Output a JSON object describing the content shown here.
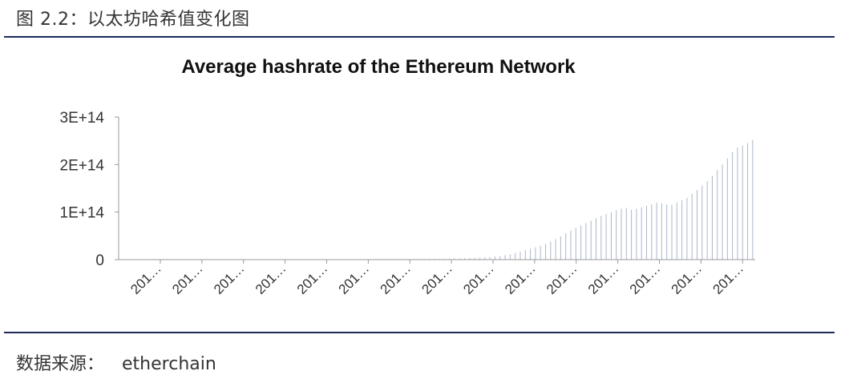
{
  "figure": {
    "caption": "图 2.2：以太坊哈希值变化图",
    "source_label": "数据来源：",
    "source_value": "etherchain"
  },
  "chart_data": {
    "type": "bar",
    "title": "Average hashrate of the Ethereum Network",
    "xlabel": "",
    "ylabel": "",
    "ylim": [
      0,
      300000000000000.0
    ],
    "y_ticks": [
      "0",
      "1E+14",
      "2E+14",
      "3E+14"
    ],
    "y_tick_values": [
      0,
      100000000000000.0,
      200000000000000.0,
      300000000000000.0
    ],
    "x_tick_labels": [
      "201…",
      "201…",
      "201…",
      "201…",
      "201…",
      "201…",
      "201…",
      "201…",
      "201…",
      "201…",
      "201…",
      "201…",
      "201…",
      "201…",
      "201…"
    ],
    "grid": false,
    "legend": "none",
    "bar_color": "#aab7c9",
    "values": [
      0,
      0,
      0,
      0,
      0,
      0,
      0,
      0,
      0,
      0,
      0,
      0,
      0,
      0,
      0,
      0,
      0,
      0,
      0,
      0,
      0,
      0,
      0,
      0,
      0,
      0,
      0,
      0,
      0,
      0,
      200000000000.0,
      200000000000.0,
      300000000000.0,
      300000000000.0,
      300000000000.0,
      400000000000.0,
      400000000000.0,
      400000000000.0,
      500000000000.0,
      500000000000.0,
      500000000000.0,
      600000000000.0,
      600000000000.0,
      600000000000.0,
      700000000000.0,
      700000000000.0,
      800000000000.0,
      800000000000.0,
      900000000000.0,
      900000000000.0,
      900000000000.0,
      1000000000000.0,
      1000000000000.0,
      1000000000000.0,
      1100000000000.0,
      1100000000000.0,
      1200000000000.0,
      1200000000000.0,
      1300000000000.0,
      1400000000000.0,
      1400000000000.0,
      1500000000000.0,
      1600000000000.0,
      1700000000000.0,
      1900000000000.0,
      2100000000000.0,
      2300000000000.0,
      2500000000000.0,
      2800000000000.0,
      3200000000000.0,
      3600000000000.0,
      4200000000000.0,
      4800000000000.0,
      5500000000000.0,
      6500000000000.0,
      7800000000000.0,
      9500000000000.0,
      11500000000000.0,
      14000000000000.0,
      17000000000000.0,
      20000000000000.0,
      23000000000000.0,
      26000000000000.0,
      29000000000000.0,
      33000000000000.0,
      38000000000000.0,
      43000000000000.0,
      49000000000000.0,
      55000000000000.0,
      61000000000000.0,
      67000000000000.0,
      72000000000000.0,
      77000000000000.0,
      82000000000000.0,
      87000000000000.0,
      92000000000000.0,
      96000000000000.0,
      100000000000000.0,
      104000000000000.0,
      107000000000000.0,
      109000000000000.0,
      105000000000000.0,
      107000000000000.0,
      110000000000000.0,
      113000000000000.0,
      116000000000000.0,
      120000000000000.0,
      118000000000000.0,
      116000000000000.0,
      115000000000000.0,
      120000000000000.0,
      125000000000000.0,
      130000000000000.0,
      138000000000000.0,
      146000000000000.0,
      155000000000000.0,
      165000000000000.0,
      176000000000000.0,
      188000000000000.0,
      200000000000000.0,
      213000000000000.0,
      226000000000000.0,
      236000000000000.0,
      240000000000000.0,
      245000000000000.0,
      252000000000000.0
    ]
  }
}
